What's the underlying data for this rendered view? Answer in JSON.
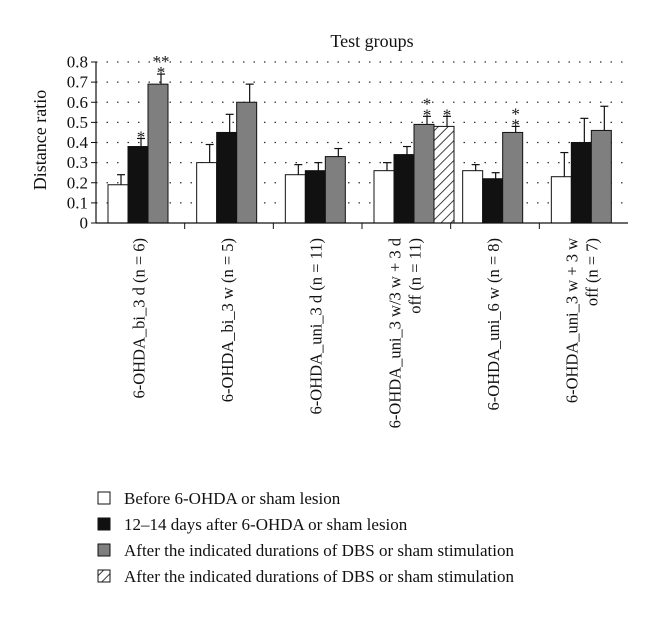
{
  "chart_data": {
    "type": "bar",
    "title": "Test groups",
    "ylabel": "Distance ratio",
    "xlabel": "",
    "ylim": [
      0,
      0.8
    ],
    "yticks": [
      "0",
      "0.1",
      "0.2",
      "0.3",
      "0.4",
      "0.5",
      "0.6",
      "0.7",
      "0.8"
    ],
    "grid": "horizontal dotted",
    "legend_position": "bottom",
    "groups": [
      {
        "label_lines": [
          "6-OHDA_bi_3 d (n = 6)"
        ],
        "bars": [
          {
            "series": 0,
            "value": 0.19,
            "err": 0.05,
            "stars": ""
          },
          {
            "series": 1,
            "value": 0.38,
            "err": 0.04,
            "stars": "*"
          },
          {
            "series": 2,
            "value": 0.69,
            "err": 0.05,
            "stars": "**\n*"
          }
        ]
      },
      {
        "label_lines": [
          "6-OHDA_bi_3 w (n = 5)"
        ],
        "bars": [
          {
            "series": 0,
            "value": 0.3,
            "err": 0.09,
            "stars": ""
          },
          {
            "series": 1,
            "value": 0.45,
            "err": 0.09,
            "stars": ""
          },
          {
            "series": 2,
            "value": 0.6,
            "err": 0.09,
            "stars": ""
          }
        ]
      },
      {
        "label_lines": [
          "6-OHDA_uni_3 d (n = 11)"
        ],
        "bars": [
          {
            "series": 0,
            "value": 0.24,
            "err": 0.05,
            "stars": ""
          },
          {
            "series": 1,
            "value": 0.26,
            "err": 0.04,
            "stars": ""
          },
          {
            "series": 2,
            "value": 0.33,
            "err": 0.04,
            "stars": ""
          }
        ]
      },
      {
        "label_lines": [
          "6-OHDA_uni_3 w/3 w + 3 d",
          "off (n = 11)"
        ],
        "bars": [
          {
            "series": 0,
            "value": 0.26,
            "err": 0.04,
            "stars": ""
          },
          {
            "series": 1,
            "value": 0.34,
            "err": 0.04,
            "stars": ""
          },
          {
            "series": 2,
            "value": 0.49,
            "err": 0.04,
            "stars": "*\n*"
          },
          {
            "series": 3,
            "value": 0.48,
            "err": 0.05,
            "stars": "*"
          }
        ]
      },
      {
        "label_lines": [
          "6-OHDA_uni_6 w (n = 8)"
        ],
        "bars": [
          {
            "series": 0,
            "value": 0.26,
            "err": 0.03,
            "stars": ""
          },
          {
            "series": 1,
            "value": 0.22,
            "err": 0.03,
            "stars": ""
          },
          {
            "series": 2,
            "value": 0.45,
            "err": 0.03,
            "stars": "*\n*"
          }
        ]
      },
      {
        "label_lines": [
          "6-OHDA_uni_3 w + 3 w",
          "off (n = 7)"
        ],
        "bars": [
          {
            "series": 0,
            "value": 0.23,
            "err": 0.12,
            "stars": ""
          },
          {
            "series": 1,
            "value": 0.4,
            "err": 0.12,
            "stars": ""
          },
          {
            "series": 2,
            "value": 0.46,
            "err": 0.12,
            "stars": ""
          }
        ]
      }
    ],
    "series": [
      {
        "name": "Before 6-OHDA or sham lesion",
        "color": "#ffffff",
        "pattern": "solid"
      },
      {
        "name": "12–14 days after 6-OHDA or sham lesion",
        "color": "#111111",
        "pattern": "solid"
      },
      {
        "name": "After the indicated durations of DBS or sham stimulation",
        "color": "#7f7f7f",
        "pattern": "solid"
      },
      {
        "name": "After the indicated durations of DBS or sham stimulation",
        "color": "#ffffff",
        "pattern": "hatch"
      }
    ]
  }
}
